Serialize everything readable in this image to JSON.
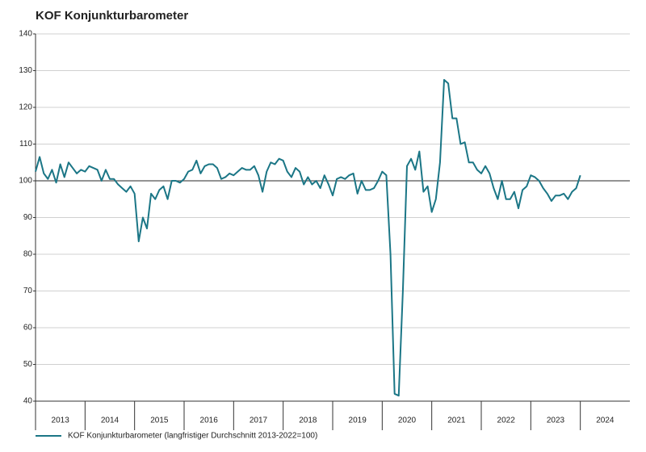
{
  "chart_data": {
    "type": "line",
    "title": "KOF Konjunkturbarometer",
    "x": [
      2013,
      2013.083,
      2013.167,
      2013.25,
      2013.333,
      2013.417,
      2013.5,
      2013.583,
      2013.667,
      2013.75,
      2013.833,
      2013.917,
      2014,
      2014.083,
      2014.167,
      2014.25,
      2014.333,
      2014.417,
      2014.5,
      2014.583,
      2014.667,
      2014.75,
      2014.833,
      2014.917,
      2015,
      2015.083,
      2015.167,
      2015.25,
      2015.333,
      2015.417,
      2015.5,
      2015.583,
      2015.667,
      2015.75,
      2015.833,
      2015.917,
      2016,
      2016.083,
      2016.167,
      2016.25,
      2016.333,
      2016.417,
      2016.5,
      2016.583,
      2016.667,
      2016.75,
      2016.833,
      2016.917,
      2017,
      2017.083,
      2017.167,
      2017.25,
      2017.333,
      2017.417,
      2017.5,
      2017.583,
      2017.667,
      2017.75,
      2017.833,
      2017.917,
      2018,
      2018.083,
      2018.167,
      2018.25,
      2018.333,
      2018.417,
      2018.5,
      2018.583,
      2018.667,
      2018.75,
      2018.833,
      2018.917,
      2019,
      2019.083,
      2019.167,
      2019.25,
      2019.333,
      2019.417,
      2019.5,
      2019.583,
      2019.667,
      2019.75,
      2019.833,
      2019.917,
      2020,
      2020.083,
      2020.167,
      2020.25,
      2020.333,
      2020.417,
      2020.5,
      2020.583,
      2020.667,
      2020.75,
      2020.833,
      2020.917,
      2021,
      2021.083,
      2021.167,
      2021.25,
      2021.333,
      2021.417,
      2021.5,
      2021.583,
      2021.667,
      2021.75,
      2021.833,
      2021.917,
      2022,
      2022.083,
      2022.167,
      2022.25,
      2022.333,
      2022.417,
      2022.5,
      2022.583,
      2022.667,
      2022.75,
      2022.833,
      2022.917,
      2023,
      2023.083,
      2023.167,
      2023.25,
      2023.333,
      2023.417,
      2023.5,
      2023.583,
      2023.667,
      2023.75,
      2023.833,
      2023.917,
      2024
    ],
    "series": [
      {
        "name": "KOF Konjunkturbarometer (langfristiger Durchschnitt 2013-2022=100)",
        "color": "#1b7686",
        "values": [
          102.5,
          106.5,
          102,
          100.5,
          103,
          99.5,
          104.5,
          101,
          105,
          103.5,
          102,
          103,
          102.5,
          104,
          103.5,
          103,
          100,
          103,
          100.5,
          100.5,
          99,
          98,
          97,
          98.5,
          96.5,
          83.5,
          90,
          87,
          96.5,
          95,
          97.5,
          98.5,
          95,
          100,
          100,
          99.5,
          100.5,
          102.5,
          103,
          105.5,
          102,
          104,
          104.5,
          104.5,
          103.5,
          100.5,
          101,
          102,
          101.5,
          102.5,
          103.5,
          103,
          103,
          104,
          101.5,
          97,
          102.5,
          105,
          104.5,
          106,
          105.5,
          102.5,
          101,
          103.5,
          102.5,
          99,
          101,
          99,
          100,
          98,
          101.5,
          99,
          96,
          100.5,
          101,
          100.5,
          101.5,
          102,
          96.5,
          100,
          97.5,
          97.5,
          98,
          100,
          102.5,
          101.5,
          80,
          42,
          41.5,
          70,
          104,
          106,
          103,
          108,
          97,
          98.5,
          91.5,
          95,
          105,
          127.5,
          126.5,
          117,
          117,
          110,
          110.5,
          105,
          105,
          103,
          102,
          104,
          102,
          98,
          95,
          100,
          95,
          95,
          97,
          92.5,
          97.5,
          98.5,
          101.5,
          101,
          100,
          98,
          96.5,
          94.5,
          96,
          96,
          96.5,
          95,
          97,
          98,
          101.5
        ]
      }
    ],
    "xlim": [
      2013,
      2025
    ],
    "xticks": [
      {
        "value": 2013.5,
        "label": "2013"
      },
      {
        "value": 2014.5,
        "label": "2014"
      },
      {
        "value": 2015.5,
        "label": "2015"
      },
      {
        "value": 2016.5,
        "label": "2016"
      },
      {
        "value": 2017.5,
        "label": "2017"
      },
      {
        "value": 2018.5,
        "label": "2018"
      },
      {
        "value": 2019.5,
        "label": "2019"
      },
      {
        "value": 2020.5,
        "label": "2020"
      },
      {
        "value": 2021.5,
        "label": "2021"
      },
      {
        "value": 2022.5,
        "label": "2022"
      },
      {
        "value": 2023.5,
        "label": "2023"
      },
      {
        "value": 2024.5,
        "label": "2024"
      }
    ],
    "ylim": [
      40,
      140
    ],
    "yticks": [
      40,
      50,
      60,
      70,
      80,
      90,
      100,
      110,
      120,
      130,
      140
    ],
    "reference_line": 100,
    "grid": true,
    "legend": "bottom"
  }
}
